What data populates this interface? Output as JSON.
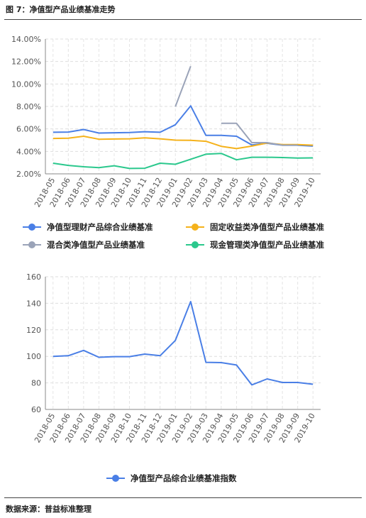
{
  "figure_title": "图 7：净值型产品业绩基准走势",
  "source_note": "数据来源：普益标准整理",
  "chart_data": [
    {
      "type": "line",
      "categories": [
        "2018-05",
        "2018-06",
        "2018-07",
        "2018-08",
        "2018-09",
        "2018-10",
        "2018-11",
        "2018-12",
        "2019-01",
        "2019-02",
        "2019-03",
        "2019-04",
        "2019-05",
        "2019-06",
        "2019-07",
        "2019-08",
        "2019-09",
        "2019-10"
      ],
      "ylim": [
        2,
        14
      ],
      "yticks": [
        2,
        4,
        6,
        8,
        10,
        12,
        14
      ],
      "ytick_labels": [
        "2.00%",
        "4.00%",
        "6.00%",
        "8.00%",
        "10.00%",
        "12.00%",
        "14.00%"
      ],
      "grid": true,
      "legend_position": "bottom",
      "series": [
        {
          "name": "净值型理财产品综合业绩基准",
          "color": "#4a7fe6",
          "values": [
            5.7,
            5.72,
            5.95,
            5.63,
            5.66,
            5.68,
            5.75,
            5.7,
            6.37,
            8.05,
            5.42,
            5.42,
            5.35,
            4.57,
            4.72,
            4.55,
            4.55,
            4.47
          ]
        },
        {
          "name": "固定收益类净值型产品业绩基准",
          "color": "#f5b21b",
          "values": [
            5.15,
            5.17,
            5.35,
            5.08,
            5.1,
            5.12,
            5.2,
            5.12,
            5.0,
            4.98,
            4.9,
            4.45,
            4.25,
            4.47,
            4.75,
            4.6,
            4.6,
            4.55
          ]
        },
        {
          "name": "混合类净值型产品业绩基准",
          "color": "#9aa3b8",
          "values": [
            null,
            null,
            null,
            null,
            null,
            null,
            null,
            null,
            7.98,
            11.58,
            null,
            6.5,
            6.5,
            4.78,
            4.78,
            4.55,
            4.55,
            null
          ]
        },
        {
          "name": "现金管理类净值型产品业绩基准",
          "color": "#2bc88d",
          "values": [
            2.95,
            2.75,
            2.63,
            2.55,
            2.72,
            2.48,
            2.5,
            2.95,
            2.85,
            3.3,
            3.75,
            3.82,
            3.25,
            3.48,
            3.48,
            3.45,
            3.4,
            3.42
          ]
        }
      ]
    },
    {
      "type": "line",
      "categories": [
        "2018-05",
        "2018-06",
        "2018-07",
        "2018-08",
        "2018-09",
        "2018-10",
        "2018-11",
        "2018-12",
        "2019-01",
        "2019-02",
        "2019-03",
        "2019-04",
        "2019-05",
        "2019-06",
        "2019-07",
        "2019-08",
        "2019-09",
        "2019-10"
      ],
      "ylim": [
        60,
        160
      ],
      "yticks": [
        60,
        80,
        100,
        120,
        140,
        160
      ],
      "ytick_labels": [
        "60",
        "80",
        "100",
        "120",
        "140",
        "160"
      ],
      "grid": true,
      "legend_position": "bottom",
      "series": [
        {
          "name": "净值型产品综合业绩基准指数",
          "color": "#4a7fe6",
          "values": [
            100,
            100.5,
            104.5,
            99.3,
            99.8,
            99.8,
            101.7,
            100.5,
            112,
            141.3,
            95.5,
            95.3,
            93.5,
            78.5,
            83,
            80.3,
            80.3,
            79
          ]
        }
      ]
    }
  ]
}
